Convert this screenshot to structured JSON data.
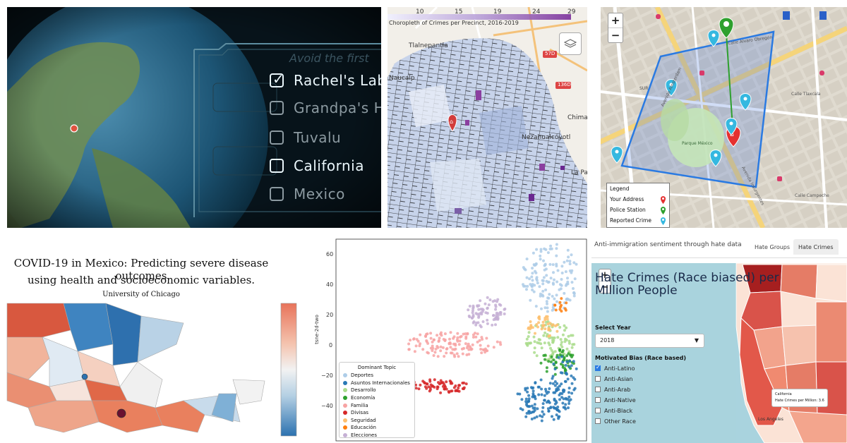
{
  "game_panel": {
    "title_faded": "Avoid the first",
    "locations": [
      {
        "label": "Rachel's Lab",
        "checked": true,
        "active": true
      },
      {
        "label": "Grandpa's Ho",
        "checked": false,
        "active": false
      },
      {
        "label": "Tuvalu",
        "checked": false,
        "active": false
      },
      {
        "label": "California",
        "checked": false,
        "active": true
      },
      {
        "label": "Mexico",
        "checked": false,
        "active": false
      }
    ],
    "colors": {
      "frame": "#5d8da0",
      "text": "#eaf6fb",
      "dim": "#8c9aa1"
    }
  },
  "choropleth_panel": {
    "title": "Choropleth of Crimes per Precinct, 2016-2019",
    "scale_ticks": [
      "10",
      "15",
      "19",
      "24",
      "29"
    ],
    "place_labels": [
      "Tlalnepantla",
      "Naucalp",
      "Chima",
      "Nezahualcóyotl",
      "La Par"
    ],
    "road_shields": [
      "57D",
      "136D"
    ],
    "marker": "home-marker",
    "layers_button": "layers-icon"
  },
  "street_panel": {
    "zoom_in": "+",
    "zoom_out": "−",
    "legend": {
      "title": "Legend",
      "items": [
        {
          "label": "Your Address",
          "color": "#e53030"
        },
        {
          "label": "Police Station",
          "color": "#2ea02e"
        },
        {
          "label": "Reported Crime",
          "color": "#35b8e0"
        }
      ]
    },
    "streets": [
      "Calle Alvaro Obregón",
      "Avenida Amsterdam",
      "Parque México",
      "SUR",
      "Avenida Insurgentes",
      "Calle Campeche",
      "Calle Tlaxcala"
    ]
  },
  "covid_panel": {
    "title_line1": "COVID-19 in Mexico: Predicting severe disease outcomes",
    "title_line2": "using health and socioeconomic variables.",
    "affiliation": "University of Chicago"
  },
  "scatter_panel": {
    "ylabel": "tsne-2d-two",
    "yticks": [
      "60",
      "40",
      "20",
      "0",
      "−20",
      "−40"
    ],
    "legend_title": "Dominant Topic",
    "legend": [
      {
        "label": "Deportes",
        "color": "#aecde8"
      },
      {
        "label": "Asuntos Internacionales",
        "color": "#2878b5"
      },
      {
        "label": "Desarrollo",
        "color": "#aadc8c"
      },
      {
        "label": "Economía",
        "color": "#2ca02c"
      },
      {
        "label": "Familia",
        "color": "#f7a3a3"
      },
      {
        "label": "Divisas",
        "color": "#d62728"
      },
      {
        "label": "Seguridad",
        "color": "#fdbf6f"
      },
      {
        "label": "Educación",
        "color": "#ff7f0e"
      },
      {
        "label": "Elecciones",
        "color": "#c5b0d5"
      }
    ]
  },
  "hate_panel": {
    "app_title": "Anti-immigration sentiment through hate data",
    "tabs": [
      {
        "label": "Hate Groups",
        "active": false
      },
      {
        "label": "Hate Crimes",
        "active": true
      }
    ],
    "zoom_in": "+",
    "zoom_out": "−",
    "heading": "Hate Crimes (Race biased) per Million People",
    "select_year_label": "Select Year",
    "year": "2018",
    "bias_label": "Motivated Bias (Race based)",
    "biases": [
      {
        "label": "Anti-Latino",
        "checked": true
      },
      {
        "label": "Anti-Asian",
        "checked": false
      },
      {
        "label": "Anti-Arab",
        "checked": false
      },
      {
        "label": "Anti-Native",
        "checked": false
      },
      {
        "label": "Anti-Black",
        "checked": false
      },
      {
        "label": "Other Race",
        "checked": false
      }
    ],
    "tooltip_state": "California",
    "tooltip_value": "Hate Crimes per Million: 3.6",
    "city_label": "Los Angeles"
  }
}
